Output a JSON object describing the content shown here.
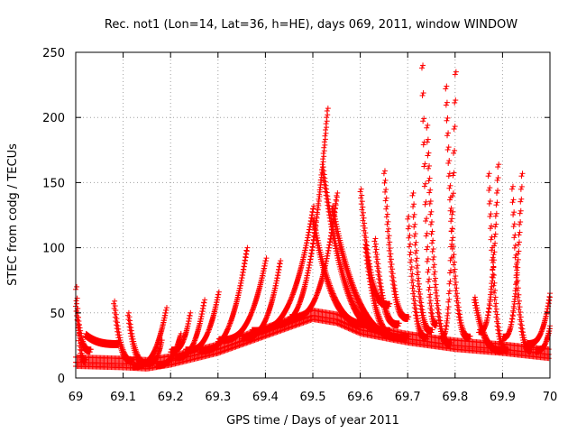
{
  "chart_data": {
    "type": "scatter",
    "title": "Rec. not1 (Lon=14, Lat=36, h=HE), days 069, 2011, window WINDOW",
    "xlabel": "GPS time / Days of year 2011",
    "ylabel": "STEC from codg / TECUs",
    "xlim": [
      69,
      70
    ],
    "ylim": [
      0,
      250
    ],
    "x_ticks": [
      "69",
      "69.1",
      "69.2",
      "69.3",
      "69.4",
      "69.5",
      "69.6",
      "69.7",
      "69.8",
      "69.9",
      "70"
    ],
    "y_ticks": [
      "0",
      "50",
      "100",
      "150",
      "200",
      "250"
    ],
    "grid": true,
    "marker": "+",
    "color": "#ff0000",
    "series_shape": "plus-marker arcs per satellite pass",
    "passes": [
      {
        "start": 69.0,
        "end": 69.02,
        "start_value": 68,
        "end_value": 12,
        "peak": null
      },
      {
        "start": 69.0,
        "end": 69.03,
        "start_value": 55,
        "end_value": 20,
        "peak": null
      },
      {
        "start": 69.02,
        "end": 69.09,
        "start_value": 32,
        "end_value": 25,
        "peak": null
      },
      {
        "start": 69.08,
        "end": 69.12,
        "start_value": 57,
        "end_value": 12,
        "peak": null
      },
      {
        "start": 69.11,
        "end": 69.15,
        "start_value": 48,
        "end_value": 10,
        "peak": null
      },
      {
        "start": 69.12,
        "end": 69.19,
        "start_value": 8,
        "end_value": 52,
        "peak": null
      },
      {
        "start": 69.15,
        "end": 69.18,
        "start_value": 10,
        "end_value": 27,
        "peak": null
      },
      {
        "start": 69.17,
        "end": 69.22,
        "start_value": 9,
        "end_value": 32,
        "peak": null
      },
      {
        "start": 69.2,
        "end": 69.24,
        "start_value": 20,
        "end_value": 48,
        "peak": null
      },
      {
        "start": 69.21,
        "end": 69.27,
        "start_value": 15,
        "end_value": 58,
        "peak": null
      },
      {
        "start": 69.23,
        "end": 69.3,
        "start_value": 20,
        "end_value": 64,
        "peak": null
      },
      {
        "start": 69.26,
        "end": 69.36,
        "start_value": 20,
        "end_value": 98,
        "peak": null
      },
      {
        "start": 69.3,
        "end": 69.4,
        "start_value": 28,
        "end_value": 90,
        "peak": null
      },
      {
        "start": 69.35,
        "end": 69.43,
        "start_value": 30,
        "end_value": 88,
        "peak": null
      },
      {
        "start": 69.37,
        "end": 69.5,
        "start_value": 35,
        "end_value": 130,
        "peak": null
      },
      {
        "start": 69.42,
        "end": 69.53,
        "start_value": 40,
        "end_value": 205,
        "peak": null
      },
      {
        "start": 69.45,
        "end": 69.55,
        "start_value": 45,
        "end_value": 140,
        "peak": null
      },
      {
        "start": 69.5,
        "end": 69.62,
        "start_value": 120,
        "end_value": 40,
        "peak": null
      },
      {
        "start": 69.52,
        "end": 69.66,
        "start_value": 160,
        "end_value": 35,
        "peak": null
      },
      {
        "start": 69.54,
        "end": 69.7,
        "start_value": 130,
        "end_value": 30,
        "peak": null
      },
      {
        "start": 69.6,
        "end": 69.66,
        "start_value": 143,
        "end_value": 55,
        "peak": null
      },
      {
        "start": 69.61,
        "end": 69.68,
        "start_value": 100,
        "end_value": 30,
        "peak": null
      },
      {
        "start": 69.63,
        "end": 69.68,
        "start_value": 105,
        "end_value": 40,
        "peak": null
      },
      {
        "start": 69.65,
        "end": 69.7,
        "start_value": 157,
        "end_value": 45,
        "peak": null
      },
      {
        "start": 69.7,
        "end": 69.74,
        "start_value": 122,
        "end_value": 30,
        "peak": null
      },
      {
        "start": 69.71,
        "end": 69.75,
        "start_value": 140,
        "end_value": 35,
        "peak": null
      },
      {
        "start": 69.73,
        "end": 69.76,
        "start_value": 238,
        "end_value": 40,
        "peak": null
      },
      {
        "start": 69.74,
        "end": 69.79,
        "start_value": 192,
        "end_value": 25,
        "peak": null
      },
      {
        "start": 69.77,
        "end": 69.8,
        "start_value": 30,
        "end_value": 233,
        "peak": null
      },
      {
        "start": 69.78,
        "end": 69.83,
        "start_value": 222,
        "end_value": 30,
        "peak": null
      },
      {
        "start": 69.84,
        "end": 69.9,
        "start_value": 60,
        "end_value": 20,
        "peak": null
      },
      {
        "start": 69.85,
        "end": 69.89,
        "start_value": 35,
        "end_value": 162,
        "peak": null
      },
      {
        "start": 69.87,
        "end": 69.91,
        "start_value": 155,
        "end_value": 20,
        "peak": null
      },
      {
        "start": 69.9,
        "end": 69.94,
        "start_value": 30,
        "end_value": 155,
        "peak": null
      },
      {
        "start": 69.92,
        "end": 69.96,
        "start_value": 145,
        "end_value": 20,
        "peak": null
      },
      {
        "start": 69.95,
        "end": 70.0,
        "start_value": 25,
        "end_value": 65,
        "peak": null
      },
      {
        "start": 69.97,
        "end": 70.0,
        "start_value": 20,
        "end_value": 40,
        "peak": null
      }
    ],
    "baseline": [
      {
        "x": 69.0,
        "y": 12
      },
      {
        "x": 69.1,
        "y": 11
      },
      {
        "x": 69.15,
        "y": 10
      },
      {
        "x": 69.2,
        "y": 13
      },
      {
        "x": 69.3,
        "y": 22
      },
      {
        "x": 69.4,
        "y": 35
      },
      {
        "x": 69.5,
        "y": 48
      },
      {
        "x": 69.55,
        "y": 45
      },
      {
        "x": 69.6,
        "y": 37
      },
      {
        "x": 69.7,
        "y": 30
      },
      {
        "x": 69.8,
        "y": 25
      },
      {
        "x": 69.9,
        "y": 22
      },
      {
        "x": 70.0,
        "y": 18
      }
    ]
  }
}
